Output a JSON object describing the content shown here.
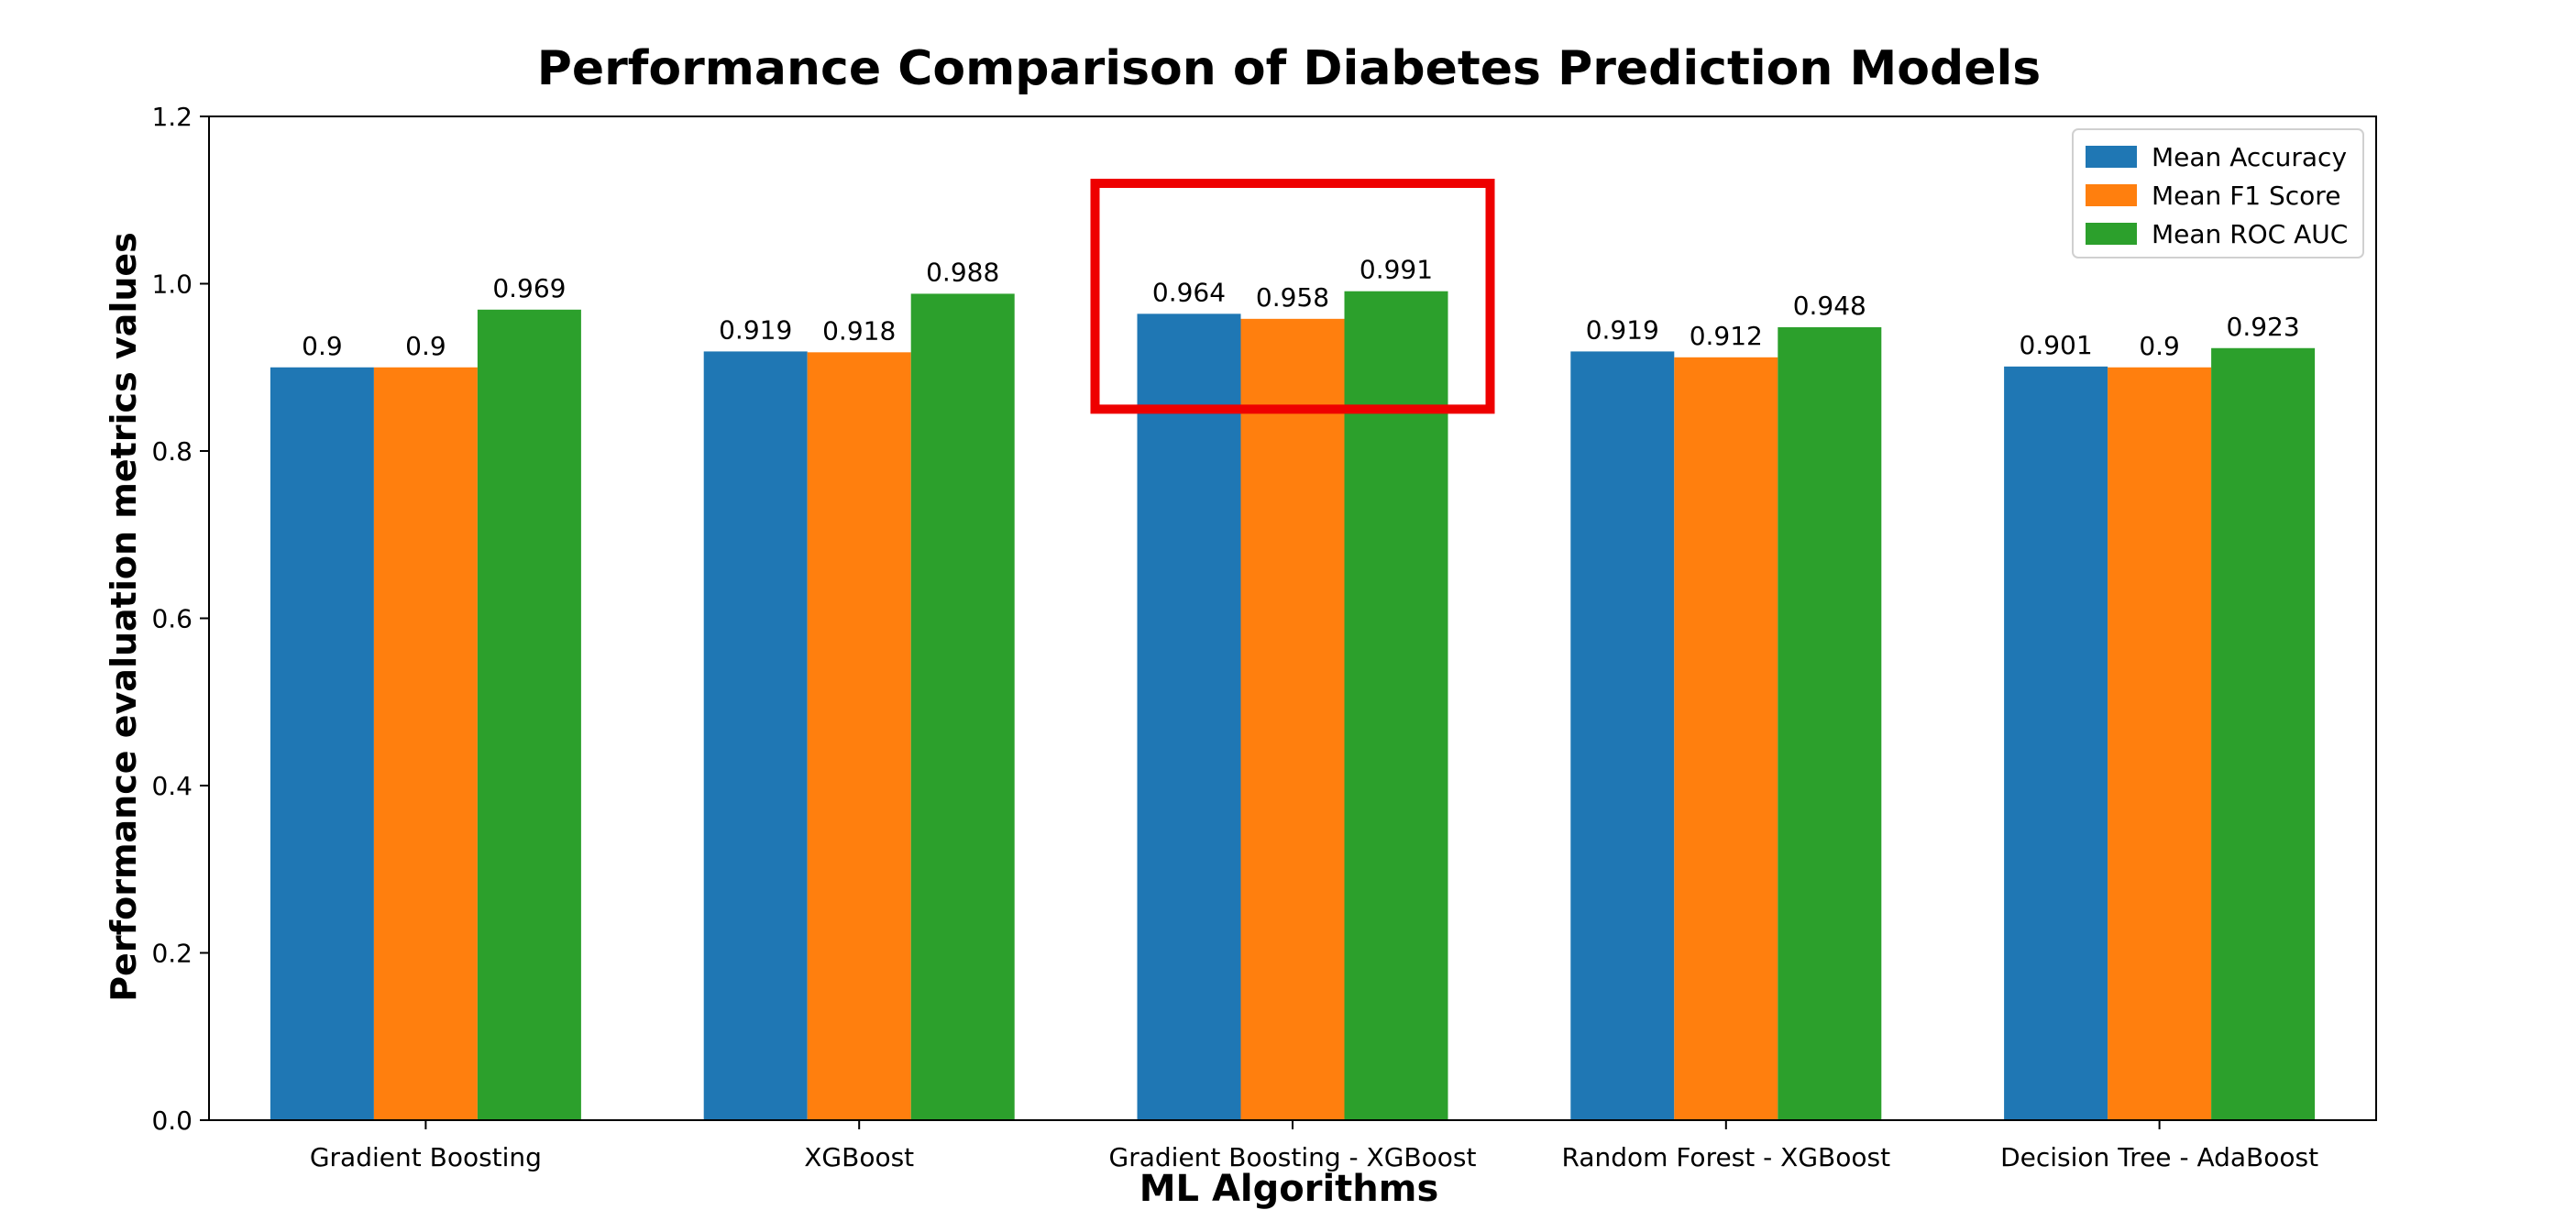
{
  "chart_data": {
    "type": "bar",
    "title": "Performance Comparison of Diabetes Prediction Models",
    "xlabel": "ML Algorithms",
    "ylabel": "Performance evaluation metrics values",
    "categories": [
      "Gradient Boosting",
      "XGBoost",
      "Gradient Boosting - XGBoost",
      "Random Forest - XGBoost",
      "Decision Tree - AdaBoost"
    ],
    "series": [
      {
        "name": "Mean Accuracy",
        "color": "#1f77b4",
        "values": [
          0.9,
          0.919,
          0.964,
          0.919,
          0.901
        ],
        "labels": [
          "0.9",
          "0.919",
          "0.964",
          "0.919",
          "0.901"
        ]
      },
      {
        "name": "Mean F1 Score",
        "color": "#ff7f0e",
        "values": [
          0.9,
          0.918,
          0.958,
          0.912,
          0.9
        ],
        "labels": [
          "0.9",
          "0.918",
          "0.958",
          "0.912",
          "0.9"
        ]
      },
      {
        "name": "Mean ROC AUC",
        "color": "#2ca02c",
        "values": [
          0.969,
          0.988,
          0.991,
          0.948,
          0.923
        ],
        "labels": [
          "0.969",
          "0.988",
          "0.991",
          "0.948",
          "0.923"
        ]
      }
    ],
    "ylim": [
      0,
      1.2
    ],
    "yticks": [
      "0.0",
      "0.2",
      "0.4",
      "0.6",
      "0.8",
      "1.0",
      "1.2"
    ],
    "grid": false,
    "legend_position": "top-right",
    "highlight": {
      "category": "Gradient Boosting - XGBoost",
      "color": "#ee0000",
      "y_range": [
        0.85,
        1.12
      ]
    }
  }
}
